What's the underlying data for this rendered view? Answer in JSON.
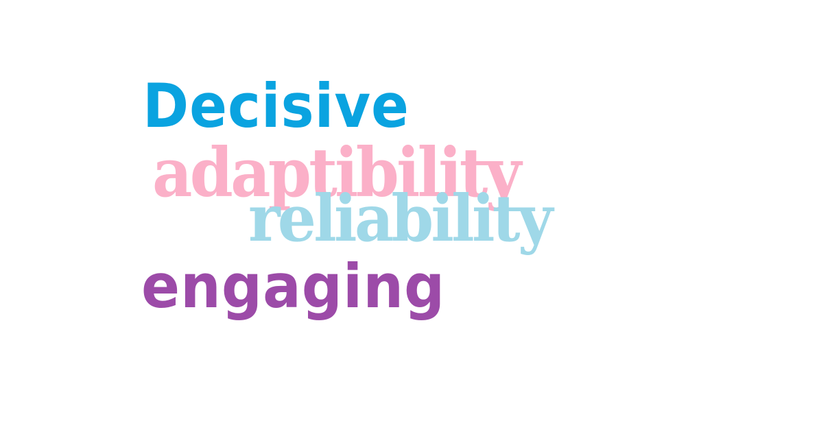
{
  "word_cloud": {
    "words": [
      {
        "text": "Decisive",
        "color": "#0aa3e0"
      },
      {
        "text": "adaptibility",
        "color": "#fbb0c8"
      },
      {
        "text": "reliability",
        "color": "#9fd8e8"
      },
      {
        "text": "engaging",
        "color": "#9c4ba8"
      }
    ]
  }
}
